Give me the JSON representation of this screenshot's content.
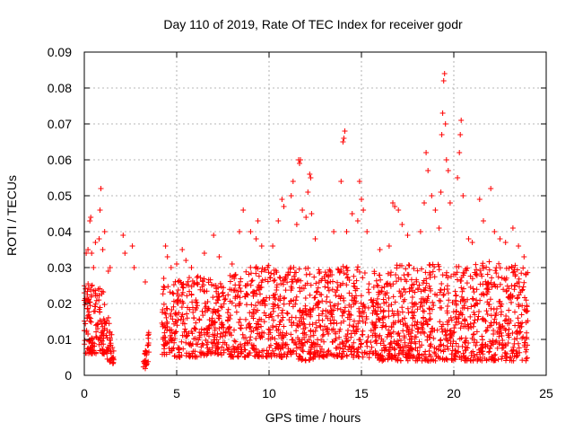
{
  "chart_data": {
    "type": "scatter",
    "title": "Day 110 of 2019, Rate Of TEC Index for receiver godr",
    "xlabel": "GPS time / hours",
    "ylabel": "ROTI / TECUs",
    "xlim": [
      0,
      25
    ],
    "ylim": [
      0,
      0.09
    ],
    "x_ticks": [
      "0",
      "5",
      "10",
      "15",
      "20",
      "25"
    ],
    "y_ticks": [
      "0",
      "0.01",
      "0.02",
      "0.03",
      "0.04",
      "0.05",
      "0.06",
      "0.07",
      "0.08",
      "0.09"
    ],
    "grid": true,
    "marker": "plus",
    "series": [
      {
        "name": "ROTI",
        "color": "#ff0000",
        "points": [
          [
            0.1,
            0.034
          ],
          [
            0.2,
            0.035
          ],
          [
            0.3,
            0.043
          ],
          [
            0.35,
            0.044
          ],
          [
            0.4,
            0.034
          ],
          [
            0.5,
            0.03
          ],
          [
            0.6,
            0.037
          ],
          [
            0.8,
            0.038
          ],
          [
            0.85,
            0.046
          ],
          [
            0.9,
            0.052
          ],
          [
            1.0,
            0.035
          ],
          [
            1.1,
            0.04
          ],
          [
            1.3,
            0.029
          ],
          [
            1.4,
            0.03
          ],
          [
            2.1,
            0.039
          ],
          [
            2.2,
            0.034
          ],
          [
            2.6,
            0.036
          ],
          [
            2.7,
            0.03
          ],
          [
            3.3,
            0.026
          ],
          [
            4.3,
            0.027
          ],
          [
            4.4,
            0.036
          ],
          [
            4.5,
            0.033
          ],
          [
            4.7,
            0.03
          ],
          [
            5.0,
            0.031
          ],
          [
            5.3,
            0.035
          ],
          [
            5.5,
            0.032
          ],
          [
            5.8,
            0.03
          ],
          [
            6.5,
            0.034
          ],
          [
            7.0,
            0.039
          ],
          [
            7.3,
            0.033
          ],
          [
            8.0,
            0.031
          ],
          [
            8.4,
            0.04
          ],
          [
            8.6,
            0.046
          ],
          [
            9.0,
            0.04
          ],
          [
            9.3,
            0.038
          ],
          [
            9.4,
            0.043
          ],
          [
            9.6,
            0.036
          ],
          [
            10.2,
            0.036
          ],
          [
            10.5,
            0.043
          ],
          [
            10.7,
            0.049
          ],
          [
            10.8,
            0.047
          ],
          [
            11.2,
            0.05
          ],
          [
            11.3,
            0.054
          ],
          [
            11.5,
            0.042
          ],
          [
            11.6,
            0.06
          ],
          [
            11.65,
            0.059
          ],
          [
            11.7,
            0.06
          ],
          [
            11.8,
            0.046
          ],
          [
            12.0,
            0.044
          ],
          [
            12.1,
            0.051
          ],
          [
            12.2,
            0.056
          ],
          [
            12.25,
            0.055
          ],
          [
            12.3,
            0.045
          ],
          [
            12.5,
            0.038
          ],
          [
            13.5,
            0.04
          ],
          [
            13.9,
            0.054
          ],
          [
            14.0,
            0.065
          ],
          [
            14.05,
            0.066
          ],
          [
            14.1,
            0.068
          ],
          [
            14.2,
            0.04
          ],
          [
            14.5,
            0.045
          ],
          [
            14.8,
            0.043
          ],
          [
            14.9,
            0.054
          ],
          [
            15.0,
            0.049
          ],
          [
            15.1,
            0.046
          ],
          [
            15.3,
            0.04
          ],
          [
            16.0,
            0.035
          ],
          [
            16.5,
            0.036
          ],
          [
            16.7,
            0.048
          ],
          [
            16.8,
            0.047
          ],
          [
            17.0,
            0.046
          ],
          [
            17.2,
            0.042
          ],
          [
            17.5,
            0.039
          ],
          [
            18.2,
            0.04
          ],
          [
            18.4,
            0.048
          ],
          [
            18.5,
            0.062
          ],
          [
            18.6,
            0.057
          ],
          [
            18.8,
            0.05
          ],
          [
            19.0,
            0.046
          ],
          [
            19.2,
            0.041
          ],
          [
            19.3,
            0.051
          ],
          [
            19.35,
            0.067
          ],
          [
            19.4,
            0.073
          ],
          [
            19.45,
            0.082
          ],
          [
            19.5,
            0.084
          ],
          [
            19.55,
            0.07
          ],
          [
            19.6,
            0.06
          ],
          [
            19.7,
            0.057
          ],
          [
            19.8,
            0.048
          ],
          [
            20.2,
            0.055
          ],
          [
            20.3,
            0.062
          ],
          [
            20.35,
            0.067
          ],
          [
            20.4,
            0.071
          ],
          [
            20.5,
            0.05
          ],
          [
            20.8,
            0.038
          ],
          [
            21.0,
            0.037
          ],
          [
            21.4,
            0.049
          ],
          [
            21.6,
            0.043
          ],
          [
            22.0,
            0.052
          ],
          [
            22.2,
            0.04
          ],
          [
            22.5,
            0.038
          ],
          [
            22.8,
            0.037
          ],
          [
            23.2,
            0.041
          ],
          [
            23.5,
            0.036
          ],
          [
            23.8,
            0.033
          ],
          [
            23.9,
            0.028
          ]
        ],
        "dense_band": {
          "note": "the bulk of the 30-second samples cluster between the lower and upper ROTI envelopes for each hour",
          "hours": [
            0,
            1,
            2,
            3,
            4,
            5,
            6,
            7,
            8,
            9,
            10,
            11,
            12,
            13,
            14,
            15,
            16,
            17,
            18,
            19,
            20,
            21,
            22,
            23,
            24
          ],
          "lower": [
            0.006,
            0.006,
            0.0,
            0.0,
            0.006,
            0.005,
            0.005,
            0.006,
            0.005,
            0.005,
            0.005,
            0.005,
            0.004,
            0.005,
            0.005,
            0.005,
            0.004,
            0.004,
            0.004,
            0.004,
            0.004,
            0.004,
            0.004,
            0.004,
            0.004
          ],
          "upper": [
            0.026,
            0.024,
            0.0,
            0.0,
            0.025,
            0.027,
            0.028,
            0.027,
            0.028,
            0.031,
            0.031,
            0.03,
            0.031,
            0.029,
            0.031,
            0.031,
            0.029,
            0.031,
            0.031,
            0.031,
            0.031,
            0.031,
            0.032,
            0.031,
            0.031
          ],
          "gaps_hours": [
            [
              1.6,
              2.1
            ],
            [
              2.9,
              3.2
            ],
            [
              3.5,
              4.2
            ]
          ]
        }
      }
    ]
  }
}
